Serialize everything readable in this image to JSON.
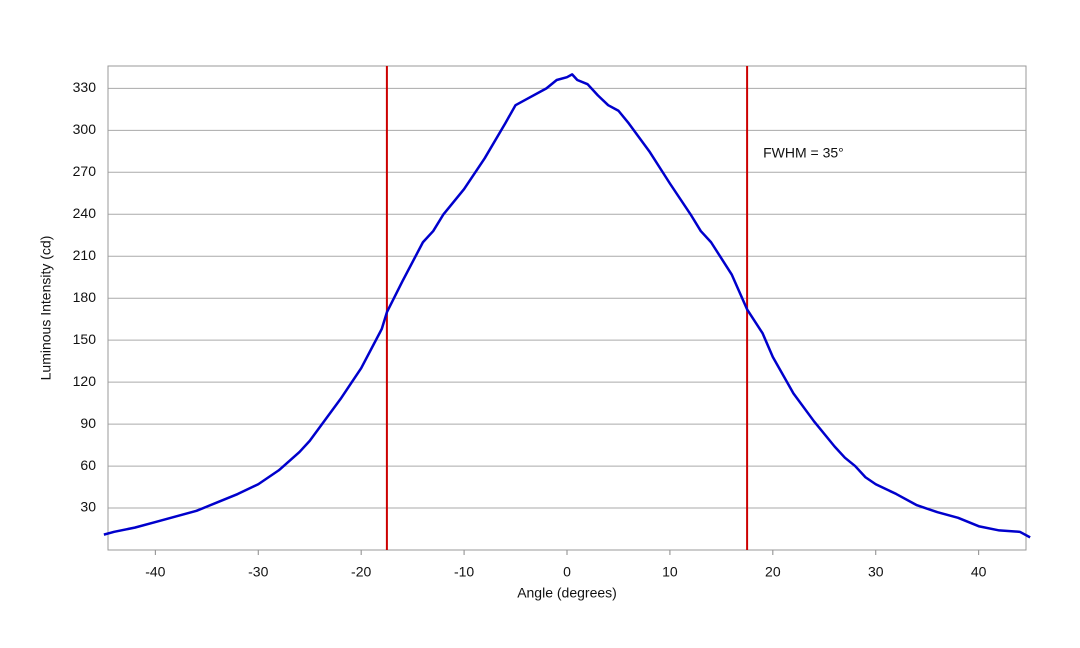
{
  "chart_data": {
    "type": "line",
    "x_label": "Angle (degrees)",
    "y_label": "Luminous Intensity (cd)",
    "annotation": "FWHM = 35°",
    "x": [
      -45,
      -44,
      -42,
      -40,
      -38,
      -36,
      -35,
      -34,
      -32,
      -30,
      -28,
      -26,
      -25,
      -24,
      -22,
      -20,
      -18,
      -17.5,
      -16,
      -14,
      -13,
      -12,
      -10,
      -8,
      -6,
      -5,
      -4,
      -2,
      -1,
      0,
      0.5,
      1,
      2,
      3,
      4,
      5,
      6,
      8,
      10,
      12,
      13,
      14,
      16,
      17.5,
      19,
      20,
      22,
      24,
      26,
      27,
      28,
      29,
      30,
      32,
      34,
      36,
      38,
      40,
      42,
      44,
      45
    ],
    "values": [
      11,
      13,
      16,
      20,
      24,
      28,
      31,
      34,
      40,
      47,
      57,
      70,
      78,
      88,
      108,
      130,
      158,
      170,
      192,
      220,
      228,
      240,
      258,
      280,
      305,
      318,
      322,
      330,
      336,
      338,
      340,
      336,
      333,
      325,
      318,
      314,
      305,
      285,
      262,
      240,
      228,
      220,
      197,
      172,
      155,
      138,
      112,
      92,
      74,
      66,
      60,
      52,
      47,
      40,
      32,
      27,
      23,
      17,
      14,
      13,
      9
    ],
    "color": "#0000cc",
    "vlines": [
      -17.5,
      17.5
    ],
    "vline_color": "#cc0000",
    "xlim": [
      -44.6,
      44.6
    ],
    "ylim": [
      0,
      346
    ],
    "xticks": [
      -40,
      -30,
      -20,
      -10,
      0,
      10,
      20,
      30,
      40
    ],
    "yticks": [
      30,
      60,
      90,
      120,
      150,
      180,
      210,
      240,
      270,
      300,
      330
    ],
    "grid": true
  }
}
